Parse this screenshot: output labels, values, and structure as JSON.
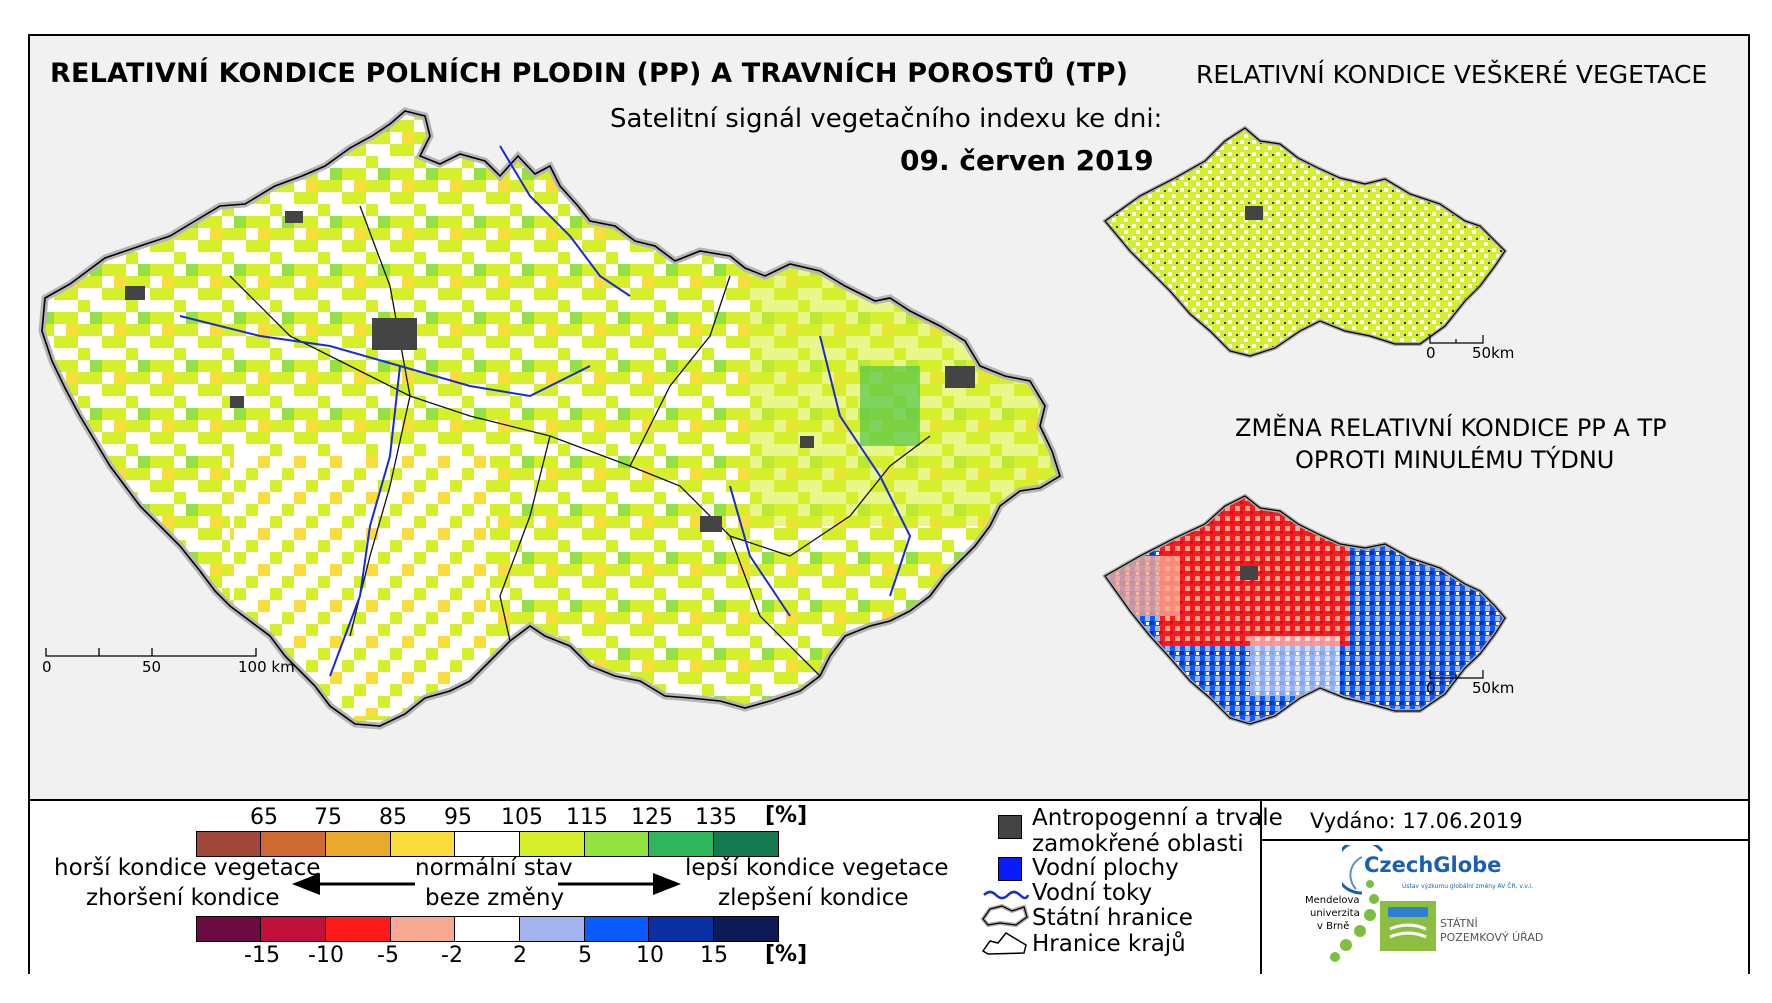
{
  "titles": {
    "main": "RELATIVNÍ KONDICE POLNÍCH PLODIN (PP) A TRAVNÍCH POROSTŮ (TP)",
    "subtitle": "Satelitní signál vegetačního indexu ke dni:",
    "date": "09. červen 2019",
    "vegetation": "RELATIVNÍ KONDICE VEŠKERÉ VEGETACE",
    "change_line1": "ZMĚNA RELATIVNÍ KONDICE PP A TP",
    "change_line2": "OPROTI MINULÉMU TÝDNU"
  },
  "scales": {
    "main": {
      "zero": "0",
      "mid": "50",
      "end": "100 km"
    },
    "small": {
      "zero": "0",
      "end": "50km"
    }
  },
  "legend": {
    "condition": {
      "labels": [
        "65",
        "75",
        "85",
        "95",
        "105",
        "115",
        "125",
        "135"
      ],
      "unit": "[%]",
      "colors": [
        "#a0483a",
        "#cd6a31",
        "#e9a92d",
        "#fadc3c",
        "#ffffff",
        "#d5ef2a",
        "#94e23f",
        "#2fb55c",
        "#157a50"
      ]
    },
    "change": {
      "labels": [
        "-15",
        "-10",
        "-5",
        "-2",
        "2",
        "5",
        "10",
        "15"
      ],
      "unit": "[%]",
      "colors": [
        "#6a0a40",
        "#c0103c",
        "#ff1a1a",
        "#f7a792",
        "#ffffff",
        "#a3b5f1",
        "#0a5bff",
        "#0b2fa5",
        "#0c1b54"
      ]
    },
    "worse_line1": "horší kondice vegetace",
    "worse_line2": "zhoršení kondice",
    "normal_line1": "normální stav",
    "normal_line2": "beze změny",
    "better_line1": "lepší kondice vegetace",
    "better_line2": "zlepšení kondice"
  },
  "map_legend": {
    "anthropogenic_line1": "Antropogenní a trvale",
    "anthropogenic_line2": "zamokřené oblasti",
    "water_bodies": "Vodní plochy",
    "rivers": "Vodní toky",
    "state_border": "Státní hranice",
    "region_border": "Hranice krajů",
    "colors": {
      "anthropogenic": "#444444",
      "water": "#0a1cff",
      "river": "#1a2ad8"
    }
  },
  "issued": "Vydáno: 17.06.2019",
  "logos": {
    "czechglobe": "CzechGlobe",
    "czechglobe_sub": "Ústav výzkumu globální změny AV ČR, v.v.i.",
    "mendel_1": "Mendelova",
    "mendel_2": "univerzita",
    "mendel_3": "v Brně",
    "spu_1": "STÁTNÍ",
    "spu_2": "POZEMKOVÝ ÚŘAD"
  }
}
